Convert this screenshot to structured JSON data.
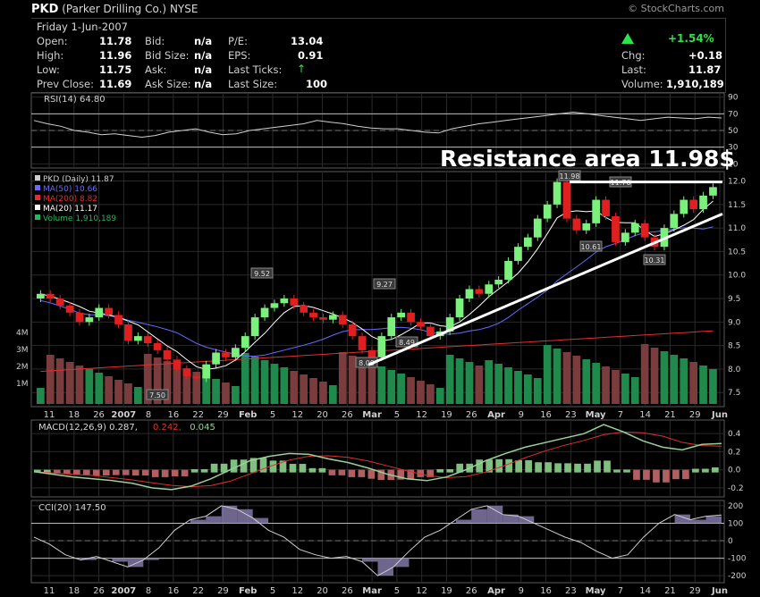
{
  "header": {
    "symbol": "PKD",
    "company": "(Parker Drilling Co.)",
    "exchange": "NYSE",
    "site": "© StockCharts.com"
  },
  "quote": {
    "date": "Friday 1-Jun-2007",
    "rows": [
      [
        {
          "label": "Open:",
          "value": "11.78"
        },
        {
          "label": "Bid:",
          "value": "n/a"
        },
        {
          "label": "P/E:",
          "value": "13.04"
        }
      ],
      [
        {
          "label": "High:",
          "value": "11.96"
        },
        {
          "label": "Bid Size:",
          "value": "n/a"
        },
        {
          "label": "EPS:",
          "value": "0.91"
        }
      ],
      [
        {
          "label": "Low:",
          "value": "11.75"
        },
        {
          "label": "Ask:",
          "value": "n/a"
        },
        {
          "label": "Last Ticks:",
          "value": ""
        }
      ],
      [
        {
          "label": "Prev Close:",
          "value": "11.69"
        },
        {
          "label": "Ask Size:",
          "value": "n/a"
        },
        {
          "label": "Last Size:",
          "value": "100"
        }
      ]
    ],
    "change_pct": "+1.54%",
    "right": [
      {
        "label": "Chg:",
        "value": "+0.18"
      },
      {
        "label": "Last:",
        "value": "11.87"
      },
      {
        "label": "Volume:",
        "value": "1,910,189"
      }
    ],
    "up_color": "#2ee34a"
  },
  "chart_data": [
    {
      "type": "line",
      "panel": "RSI",
      "legend": "RSI(14) 64.80",
      "ylim": [
        5,
        95
      ],
      "yticks": [
        10,
        30,
        50,
        70,
        90
      ],
      "ref_lines": [
        30,
        70
      ],
      "series": [
        {
          "name": "RSI(14)",
          "values": [
            62,
            58,
            55,
            50,
            48,
            45,
            46,
            44,
            42,
            44,
            48,
            50,
            52,
            48,
            45,
            46,
            50,
            52,
            54,
            56,
            58,
            62,
            60,
            58,
            55,
            53,
            52,
            52,
            50,
            48,
            47,
            52,
            55,
            58,
            60,
            62,
            64,
            66,
            68,
            70,
            72,
            70,
            68,
            66,
            64,
            62,
            64,
            66,
            65,
            64,
            66,
            65
          ]
        }
      ]
    },
    {
      "type": "candlestick",
      "panel": "price",
      "title": "PKD (Daily) 11.87",
      "ylim": [
        7.2,
        12.2
      ],
      "yticks": [
        7.5,
        8.0,
        8.5,
        9.0,
        9.5,
        10.0,
        10.5,
        11.0,
        11.5,
        12.0
      ],
      "x_ticks": [
        "11",
        "18",
        "26",
        "2007",
        "8",
        "16",
        "22",
        "29",
        "Feb",
        "5",
        "12",
        "20",
        "26",
        "Mar",
        "5",
        "12",
        "19",
        "26",
        "Apr",
        "9",
        "16",
        "23",
        "May",
        "7",
        "14",
        "21",
        "29",
        "Jun"
      ],
      "close": [
        9.6,
        9.5,
        9.35,
        9.2,
        9.0,
        9.1,
        9.3,
        9.15,
        8.95,
        8.6,
        8.7,
        8.55,
        8.4,
        8.2,
        8.0,
        7.85,
        7.8,
        8.1,
        8.35,
        8.25,
        8.45,
        8.7,
        9.1,
        9.3,
        9.4,
        9.5,
        9.35,
        9.2,
        9.1,
        9.05,
        9.15,
        8.95,
        8.7,
        8.4,
        8.25,
        8.7,
        9.1,
        9.2,
        9.0,
        8.9,
        8.7,
        8.8,
        9.1,
        9.5,
        9.7,
        9.6,
        9.8,
        9.9,
        10.3,
        10.6,
        10.8,
        11.2,
        11.5,
        11.98,
        11.2,
        10.95,
        11.1,
        11.6,
        11.25,
        10.7,
        10.9,
        11.1,
        10.8,
        10.6,
        11.0,
        11.3,
        11.6,
        11.4,
        11.69,
        11.87
      ],
      "annotations": [
        {
          "label": "7.50",
          "value": 7.5
        },
        {
          "label": "9.52",
          "value": 9.52
        },
        {
          "label": "8.09",
          "value": 8.09
        },
        {
          "label": "9.27",
          "value": 9.27
        },
        {
          "label": "8.49",
          "value": 8.49
        },
        {
          "label": "11.98",
          "value": 11.98
        },
        {
          "label": "11.76",
          "value": 11.76
        },
        {
          "label": "10.61",
          "value": 10.61
        },
        {
          "label": "10.31",
          "value": 10.31
        }
      ],
      "overlay_text": "Resistance area 11.98$",
      "legend": [
        {
          "label": "PKD (Daily) 11.87",
          "color": "#cfcfcf"
        },
        {
          "label": "MA(50) 10.66",
          "color": "#6a6aff"
        },
        {
          "label": "MA(200) 8.82",
          "color": "#e03030"
        },
        {
          "label": "MA(20) 11.17",
          "color": "#ffffff"
        },
        {
          "label": "Volume 1,910,189",
          "color": "#2bb35e"
        }
      ],
      "volume_axis": [
        "1M",
        "2M",
        "3M",
        "4M"
      ],
      "up_color": "#7cf07c",
      "down_color": "#e02020"
    },
    {
      "type": "line",
      "panel": "MACD",
      "legend": [
        {
          "label": "MACD(12,26,9) 0.287,",
          "color": "#d8d8d8"
        },
        {
          "label": "0.242,",
          "color": "#e03030"
        },
        {
          "label": "0.045",
          "color": "#9ad09a"
        }
      ],
      "ylim": [
        -0.3,
        0.55
      ],
      "yticks": [
        -0.2,
        0.0,
        0.2,
        0.4
      ],
      "series": [
        {
          "name": "MACD",
          "values": [
            -0.02,
            -0.05,
            -0.08,
            -0.1,
            -0.12,
            -0.15,
            -0.2,
            -0.22,
            -0.18,
            -0.1,
            0.0,
            0.1,
            0.15,
            0.18,
            0.17,
            0.12,
            0.08,
            0.02,
            -0.05,
            -0.1,
            -0.12,
            -0.08,
            0.0,
            0.1,
            0.18,
            0.25,
            0.3,
            0.35,
            0.4,
            0.5,
            0.42,
            0.32,
            0.25,
            0.22,
            0.28,
            0.29
          ]
        }
      ]
    },
    {
      "type": "line",
      "panel": "CCI",
      "legend": "CCI(20) 147.50",
      "ylim": [
        -240,
        230
      ],
      "yticks": [
        -200,
        -100,
        0,
        100,
        200
      ],
      "ref_lines": [
        -100,
        100
      ],
      "series": [
        {
          "name": "CCI(20)",
          "values": [
            20,
            -20,
            -80,
            -110,
            -90,
            -120,
            -150,
            -110,
            -40,
            60,
            120,
            140,
            200,
            180,
            130,
            60,
            20,
            -50,
            -80,
            -100,
            -90,
            -120,
            -200,
            -150,
            -60,
            20,
            60,
            120,
            180,
            200,
            150,
            140,
            100,
            60,
            20,
            -10,
            -60,
            -100,
            -80,
            20,
            100,
            150,
            120,
            140,
            147
          ]
        }
      ]
    }
  ]
}
